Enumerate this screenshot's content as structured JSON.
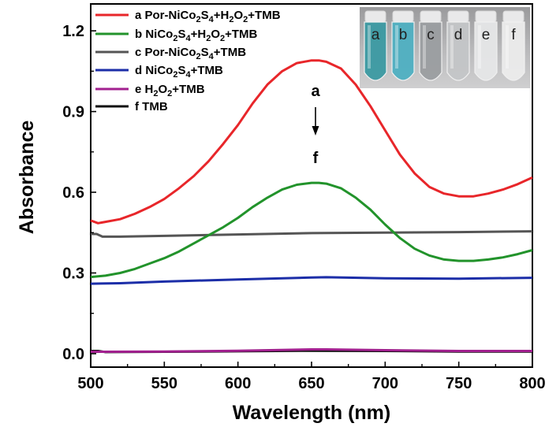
{
  "chart_data": {
    "type": "line",
    "xlabel": "Wavelength (nm)",
    "ylabel": "Absorbance",
    "xlim": [
      500,
      800
    ],
    "ylim": [
      -0.05,
      1.3
    ],
    "xticks": [
      500,
      550,
      600,
      650,
      700,
      750,
      800
    ],
    "xtick_labels": [
      "500",
      "550",
      "600",
      "650",
      "700",
      "750",
      "800"
    ],
    "yticks": [
      0.0,
      0.3,
      0.6,
      0.9,
      1.2
    ],
    "ytick_labels": [
      "0.0",
      "0.3",
      "0.6",
      "0.9",
      "1.2"
    ],
    "grid": false,
    "legend_position": "top-left",
    "series": [
      {
        "letter": "a",
        "name": "Por-NiCo2S4+H2O2+TMB",
        "label_parts": [
          {
            "t": "Por-NiCo",
            "s": ""
          },
          {
            "t": "2",
            "s": "sub"
          },
          {
            "t": "S",
            "s": ""
          },
          {
            "t": "4",
            "s": "sub"
          },
          {
            "t": "+H",
            "s": ""
          },
          {
            "t": "2",
            "s": "sub"
          },
          {
            "t": "O",
            "s": ""
          },
          {
            "t": "2",
            "s": "sub"
          },
          {
            "t": "+TMB",
            "s": ""
          }
        ],
        "color": "#e8262a",
        "x": [
          500,
          505,
          510,
          520,
          530,
          540,
          550,
          560,
          570,
          580,
          590,
          600,
          610,
          620,
          630,
          640,
          650,
          655,
          660,
          670,
          680,
          690,
          700,
          710,
          720,
          730,
          740,
          750,
          760,
          770,
          780,
          790,
          800
        ],
        "y": [
          0.495,
          0.485,
          0.49,
          0.5,
          0.52,
          0.545,
          0.575,
          0.615,
          0.66,
          0.715,
          0.78,
          0.85,
          0.93,
          1.0,
          1.05,
          1.08,
          1.09,
          1.09,
          1.085,
          1.06,
          1.0,
          0.92,
          0.83,
          0.74,
          0.67,
          0.62,
          0.595,
          0.585,
          0.585,
          0.595,
          0.61,
          0.63,
          0.655
        ]
      },
      {
        "letter": "b",
        "name": "NiCo2S4+H2O2+TMB",
        "label_parts": [
          {
            "t": "NiCo",
            "s": ""
          },
          {
            "t": "2",
            "s": "sub"
          },
          {
            "t": "S",
            "s": ""
          },
          {
            "t": "4",
            "s": "sub"
          },
          {
            "t": "+H",
            "s": ""
          },
          {
            "t": "2",
            "s": "sub"
          },
          {
            "t": "O",
            "s": ""
          },
          {
            "t": "2",
            "s": "sub"
          },
          {
            "t": "+TMB",
            "s": ""
          }
        ],
        "color": "#22932b",
        "x": [
          500,
          510,
          520,
          530,
          540,
          550,
          560,
          570,
          580,
          590,
          600,
          610,
          620,
          630,
          640,
          650,
          655,
          660,
          670,
          680,
          690,
          700,
          710,
          720,
          730,
          740,
          750,
          760,
          770,
          780,
          790,
          800
        ],
        "y": [
          0.285,
          0.29,
          0.3,
          0.315,
          0.335,
          0.355,
          0.38,
          0.41,
          0.44,
          0.47,
          0.505,
          0.545,
          0.58,
          0.61,
          0.628,
          0.635,
          0.635,
          0.632,
          0.615,
          0.58,
          0.535,
          0.48,
          0.43,
          0.39,
          0.365,
          0.35,
          0.345,
          0.345,
          0.35,
          0.358,
          0.37,
          0.385
        ]
      },
      {
        "letter": "c",
        "name": "Por-NiCo2S4+TMB",
        "label_parts": [
          {
            "t": "Por-NiCo",
            "s": ""
          },
          {
            "t": "2",
            "s": "sub"
          },
          {
            "t": "S",
            "s": ""
          },
          {
            "t": "4",
            "s": "sub"
          },
          {
            "t": "+TMB",
            "s": ""
          }
        ],
        "color": "#555555",
        "x": [
          500,
          504,
          508,
          520,
          550,
          600,
          650,
          700,
          750,
          800
        ],
        "y": [
          0.445,
          0.445,
          0.435,
          0.435,
          0.438,
          0.443,
          0.448,
          0.45,
          0.452,
          0.455
        ]
      },
      {
        "letter": "d",
        "name": "NiCo2S4+TMB",
        "label_parts": [
          {
            "t": "NiCo",
            "s": ""
          },
          {
            "t": "2",
            "s": "sub"
          },
          {
            "t": "S",
            "s": ""
          },
          {
            "t": "4",
            "s": "sub"
          },
          {
            "t": "+TMB",
            "s": ""
          }
        ],
        "color": "#1c2ea8",
        "x": [
          500,
          520,
          550,
          600,
          650,
          660,
          700,
          750,
          800
        ],
        "y": [
          0.26,
          0.262,
          0.268,
          0.276,
          0.283,
          0.284,
          0.28,
          0.279,
          0.282
        ]
      },
      {
        "letter": "e",
        "name": "H2O2+TMB",
        "label_parts": [
          {
            "t": "H",
            "s": ""
          },
          {
            "t": "2",
            "s": "sub"
          },
          {
            "t": "O",
            "s": ""
          },
          {
            "t": "2",
            "s": "sub"
          },
          {
            "t": "+TMB",
            "s": ""
          }
        ],
        "color": "#a2208f",
        "x": [
          500,
          550,
          600,
          650,
          660,
          700,
          750,
          800
        ],
        "y": [
          0.007,
          0.008,
          0.011,
          0.016,
          0.016,
          0.013,
          0.01,
          0.01
        ]
      },
      {
        "letter": "f",
        "name": "TMB",
        "label_parts": [
          {
            "t": "TMB",
            "s": ""
          }
        ],
        "color": "#111111",
        "x": [
          500,
          505,
          510,
          550,
          600,
          650,
          700,
          750,
          800
        ],
        "y": [
          0.01,
          0.01,
          0.006,
          0.007,
          0.009,
          0.011,
          0.01,
          0.008,
          0.008
        ]
      }
    ],
    "annotations": {
      "top_letter": "a",
      "bottom_letter": "f",
      "arrow": "down"
    },
    "inset_photo": {
      "vial_labels": [
        "a",
        "b",
        "c",
        "d",
        "e",
        "f"
      ],
      "vial_colors": [
        "#3c9aa3",
        "#4fb0c2",
        "#9b9ea1",
        "#c4c6c8",
        "#e6e7e8",
        "#ececec"
      ]
    }
  }
}
